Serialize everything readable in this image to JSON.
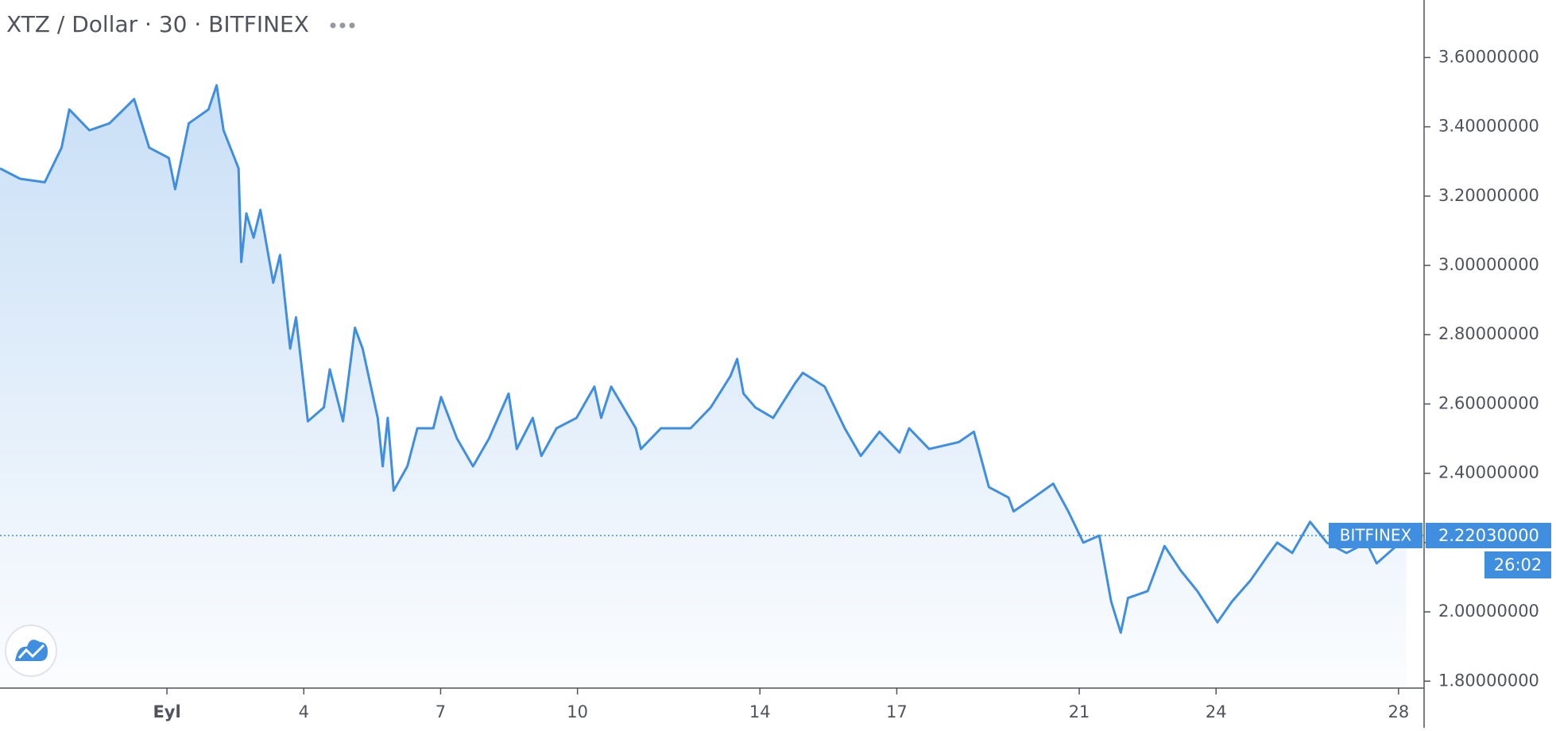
{
  "chart_data": {
    "type": "area",
    "title": "XTZ / Dollar · 30 · BITFINEX",
    "color": "#3f8ee0",
    "x": [
      -2.66,
      -2.22,
      -1.68,
      -1.31,
      -1.14,
      -0.7,
      -0.26,
      0.28,
      0.61,
      1.04,
      1.18,
      1.48,
      1.91,
      2.09,
      2.24,
      2.57,
      2.63,
      2.74,
      2.9,
      3.05,
      3.33,
      3.48,
      3.7,
      3.83,
      4.09,
      4.44,
      4.57,
      4.86,
      5.12,
      5.29,
      5.62,
      5.73,
      5.84,
      5.97,
      6.27,
      6.49,
      6.84,
      7.01,
      7.36,
      7.71,
      8.06,
      8.49,
      8.67,
      9.02,
      9.21,
      9.54,
      9.98,
      10.37,
      10.52,
      10.74,
      11.28,
      11.39,
      11.83,
      12.48,
      12.92,
      13.35,
      13.5,
      13.64,
      13.9,
      14.29,
      14.77,
      14.94,
      15.42,
      15.86,
      16.21,
      16.62,
      17.06,
      17.27,
      17.71,
      18.36,
      18.69,
      19.02,
      19.45,
      19.56,
      20.0,
      20.43,
      20.76,
      21.09,
      21.44,
      21.7,
      21.91,
      22.07,
      22.5,
      22.87,
      23.22,
      23.59,
      24.03,
      24.35,
      24.75,
      25.12,
      25.34,
      25.67,
      26.06,
      26.43,
      26.86,
      27.3,
      27.52,
      27.95,
      28.17
    ],
    "values": [
      3.28,
      3.25,
      3.24,
      3.34,
      3.45,
      3.39,
      3.41,
      3.48,
      3.34,
      3.31,
      3.22,
      3.41,
      3.45,
      3.52,
      3.39,
      3.28,
      3.01,
      3.15,
      3.08,
      3.16,
      2.95,
      3.03,
      2.76,
      2.85,
      2.55,
      2.59,
      2.7,
      2.55,
      2.82,
      2.76,
      2.56,
      2.42,
      2.56,
      2.35,
      2.42,
      2.53,
      2.53,
      2.62,
      2.5,
      2.42,
      2.5,
      2.63,
      2.47,
      2.56,
      2.45,
      2.53,
      2.56,
      2.65,
      2.56,
      2.65,
      2.53,
      2.47,
      2.53,
      2.53,
      2.59,
      2.68,
      2.73,
      2.63,
      2.59,
      2.56,
      2.66,
      2.69,
      2.65,
      2.53,
      2.45,
      2.52,
      2.46,
      2.53,
      2.47,
      2.49,
      2.52,
      2.36,
      2.33,
      2.29,
      2.33,
      2.37,
      2.29,
      2.2,
      2.22,
      2.03,
      1.94,
      2.04,
      2.06,
      2.19,
      2.12,
      2.06,
      1.97,
      2.03,
      2.09,
      2.16,
      2.2,
      2.17,
      2.26,
      2.2,
      2.17,
      2.2,
      2.14,
      2.19,
      2.2203
    ],
    "xlim": [
      -2.66,
      28.56
    ],
    "xticks": [
      {
        "value": 1,
        "label": "Eyl"
      },
      4,
      7,
      10,
      14,
      17,
      21,
      24,
      28
    ],
    "ylim": [
      1.78,
      3.766
    ],
    "yticks": [
      {
        "value": 1.8,
        "label": "1.80000000"
      },
      {
        "value": 2.0,
        "label": "2.00000000"
      },
      {
        "value": 2.2,
        "label": "2.20000000"
      },
      {
        "value": 2.4,
        "label": "2.40000000"
      },
      {
        "value": 2.6,
        "label": "2.60000000"
      },
      {
        "value": 2.8,
        "label": "2.80000000"
      },
      {
        "value": 3.0,
        "label": "3.00000000"
      },
      {
        "value": 3.2,
        "label": "3.20000000"
      },
      {
        "value": 3.4,
        "label": "3.40000000"
      },
      {
        "value": 3.6,
        "label": "3.60000000"
      }
    ],
    "price_line": {
      "value": 2.2203,
      "label": "2.22030000",
      "source": "BITFINEX",
      "countdown": "26:02"
    }
  }
}
